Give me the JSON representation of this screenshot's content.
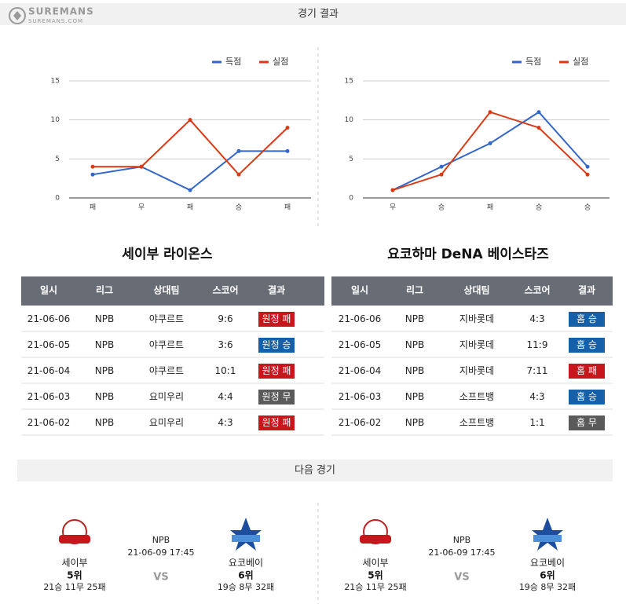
{
  "brand": {
    "name": "SUREMANS",
    "url": "SUREMANS.COM"
  },
  "results_title": "경기 결과",
  "chart_data": [
    {
      "type": "line",
      "categories": [
        "패",
        "무",
        "패",
        "승",
        "패"
      ],
      "series": [
        {
          "name": "득점",
          "color": "#3366cc",
          "values": [
            3,
            4,
            1,
            6,
            6
          ]
        },
        {
          "name": "실점",
          "color": "#dc3912",
          "values": [
            4,
            4,
            10,
            3,
            9
          ]
        }
      ],
      "ylim": [
        0,
        15
      ],
      "yticks": [
        0,
        5,
        10,
        15
      ],
      "grid": true,
      "legend": "top-right"
    },
    {
      "type": "line",
      "categories": [
        "무",
        "승",
        "패",
        "승",
        "승"
      ],
      "series": [
        {
          "name": "득점",
          "color": "#3366cc",
          "values": [
            1,
            4,
            7,
            11,
            4
          ]
        },
        {
          "name": "실점",
          "color": "#dc3912",
          "values": [
            1,
            3,
            11,
            9,
            3
          ]
        }
      ],
      "ylim": [
        0,
        15
      ],
      "yticks": [
        0,
        5,
        10,
        15
      ],
      "grid": true,
      "legend": "top-right"
    }
  ],
  "teams": [
    {
      "name": "세이부 라이온스",
      "table": {
        "header": [
          "일시",
          "리그",
          "상대팀",
          "스코어",
          "결과"
        ],
        "rows": [
          [
            "21-06-06",
            "NPB",
            "야쿠르트",
            "9:6",
            "원정 패"
          ],
          [
            "21-06-05",
            "NPB",
            "야쿠르트",
            "3:6",
            "원정 승"
          ],
          [
            "21-06-04",
            "NPB",
            "야쿠르트",
            "10:1",
            "원정 패"
          ],
          [
            "21-06-03",
            "NPB",
            "요미우리",
            "4:4",
            "원정 무"
          ],
          [
            "21-06-02",
            "NPB",
            "요미우리",
            "4:3",
            "원정 패"
          ]
        ],
        "result_colors": [
          "#c8161d",
          "#1560a8",
          "#c8161d",
          "#5a5a5a",
          "#c8161d"
        ]
      }
    },
    {
      "name": "요코하마 DeNA 베이스타즈",
      "table": {
        "header": [
          "일시",
          "리그",
          "상대팀",
          "스코어",
          "결과"
        ],
        "rows": [
          [
            "21-06-06",
            "NPB",
            "지바롯데",
            "4:3",
            "홈 승"
          ],
          [
            "21-06-05",
            "NPB",
            "지바롯데",
            "11:9",
            "홈 승"
          ],
          [
            "21-06-04",
            "NPB",
            "지바롯데",
            "7:11",
            "홈 패"
          ],
          [
            "21-06-03",
            "NPB",
            "소프트뱅",
            "4:3",
            "홈 승"
          ],
          [
            "21-06-02",
            "NPB",
            "소프트뱅",
            "1:1",
            "홈 무"
          ]
        ],
        "result_colors": [
          "#1560a8",
          "#1560a8",
          "#c8161d",
          "#1560a8",
          "#5a5a5a"
        ]
      }
    }
  ],
  "next_title": "다음 경기",
  "next_games": [
    {
      "home": {
        "name": "세이부",
        "rank": "5위",
        "record": "21승 11무 25패"
      },
      "league": "NPB",
      "datetime": "21-06-09 17:45",
      "vs": "VS",
      "away": {
        "name": "요코베이",
        "rank": "6위",
        "record": "19승 8무 32패"
      }
    },
    {
      "home": {
        "name": "세이부",
        "rank": "5위",
        "record": "21승 11무 25패"
      },
      "league": "NPB",
      "datetime": "21-06-09 17:45",
      "vs": "VS",
      "away": {
        "name": "요코베이",
        "rank": "6위",
        "record": "19승 8무 32패"
      }
    }
  ]
}
